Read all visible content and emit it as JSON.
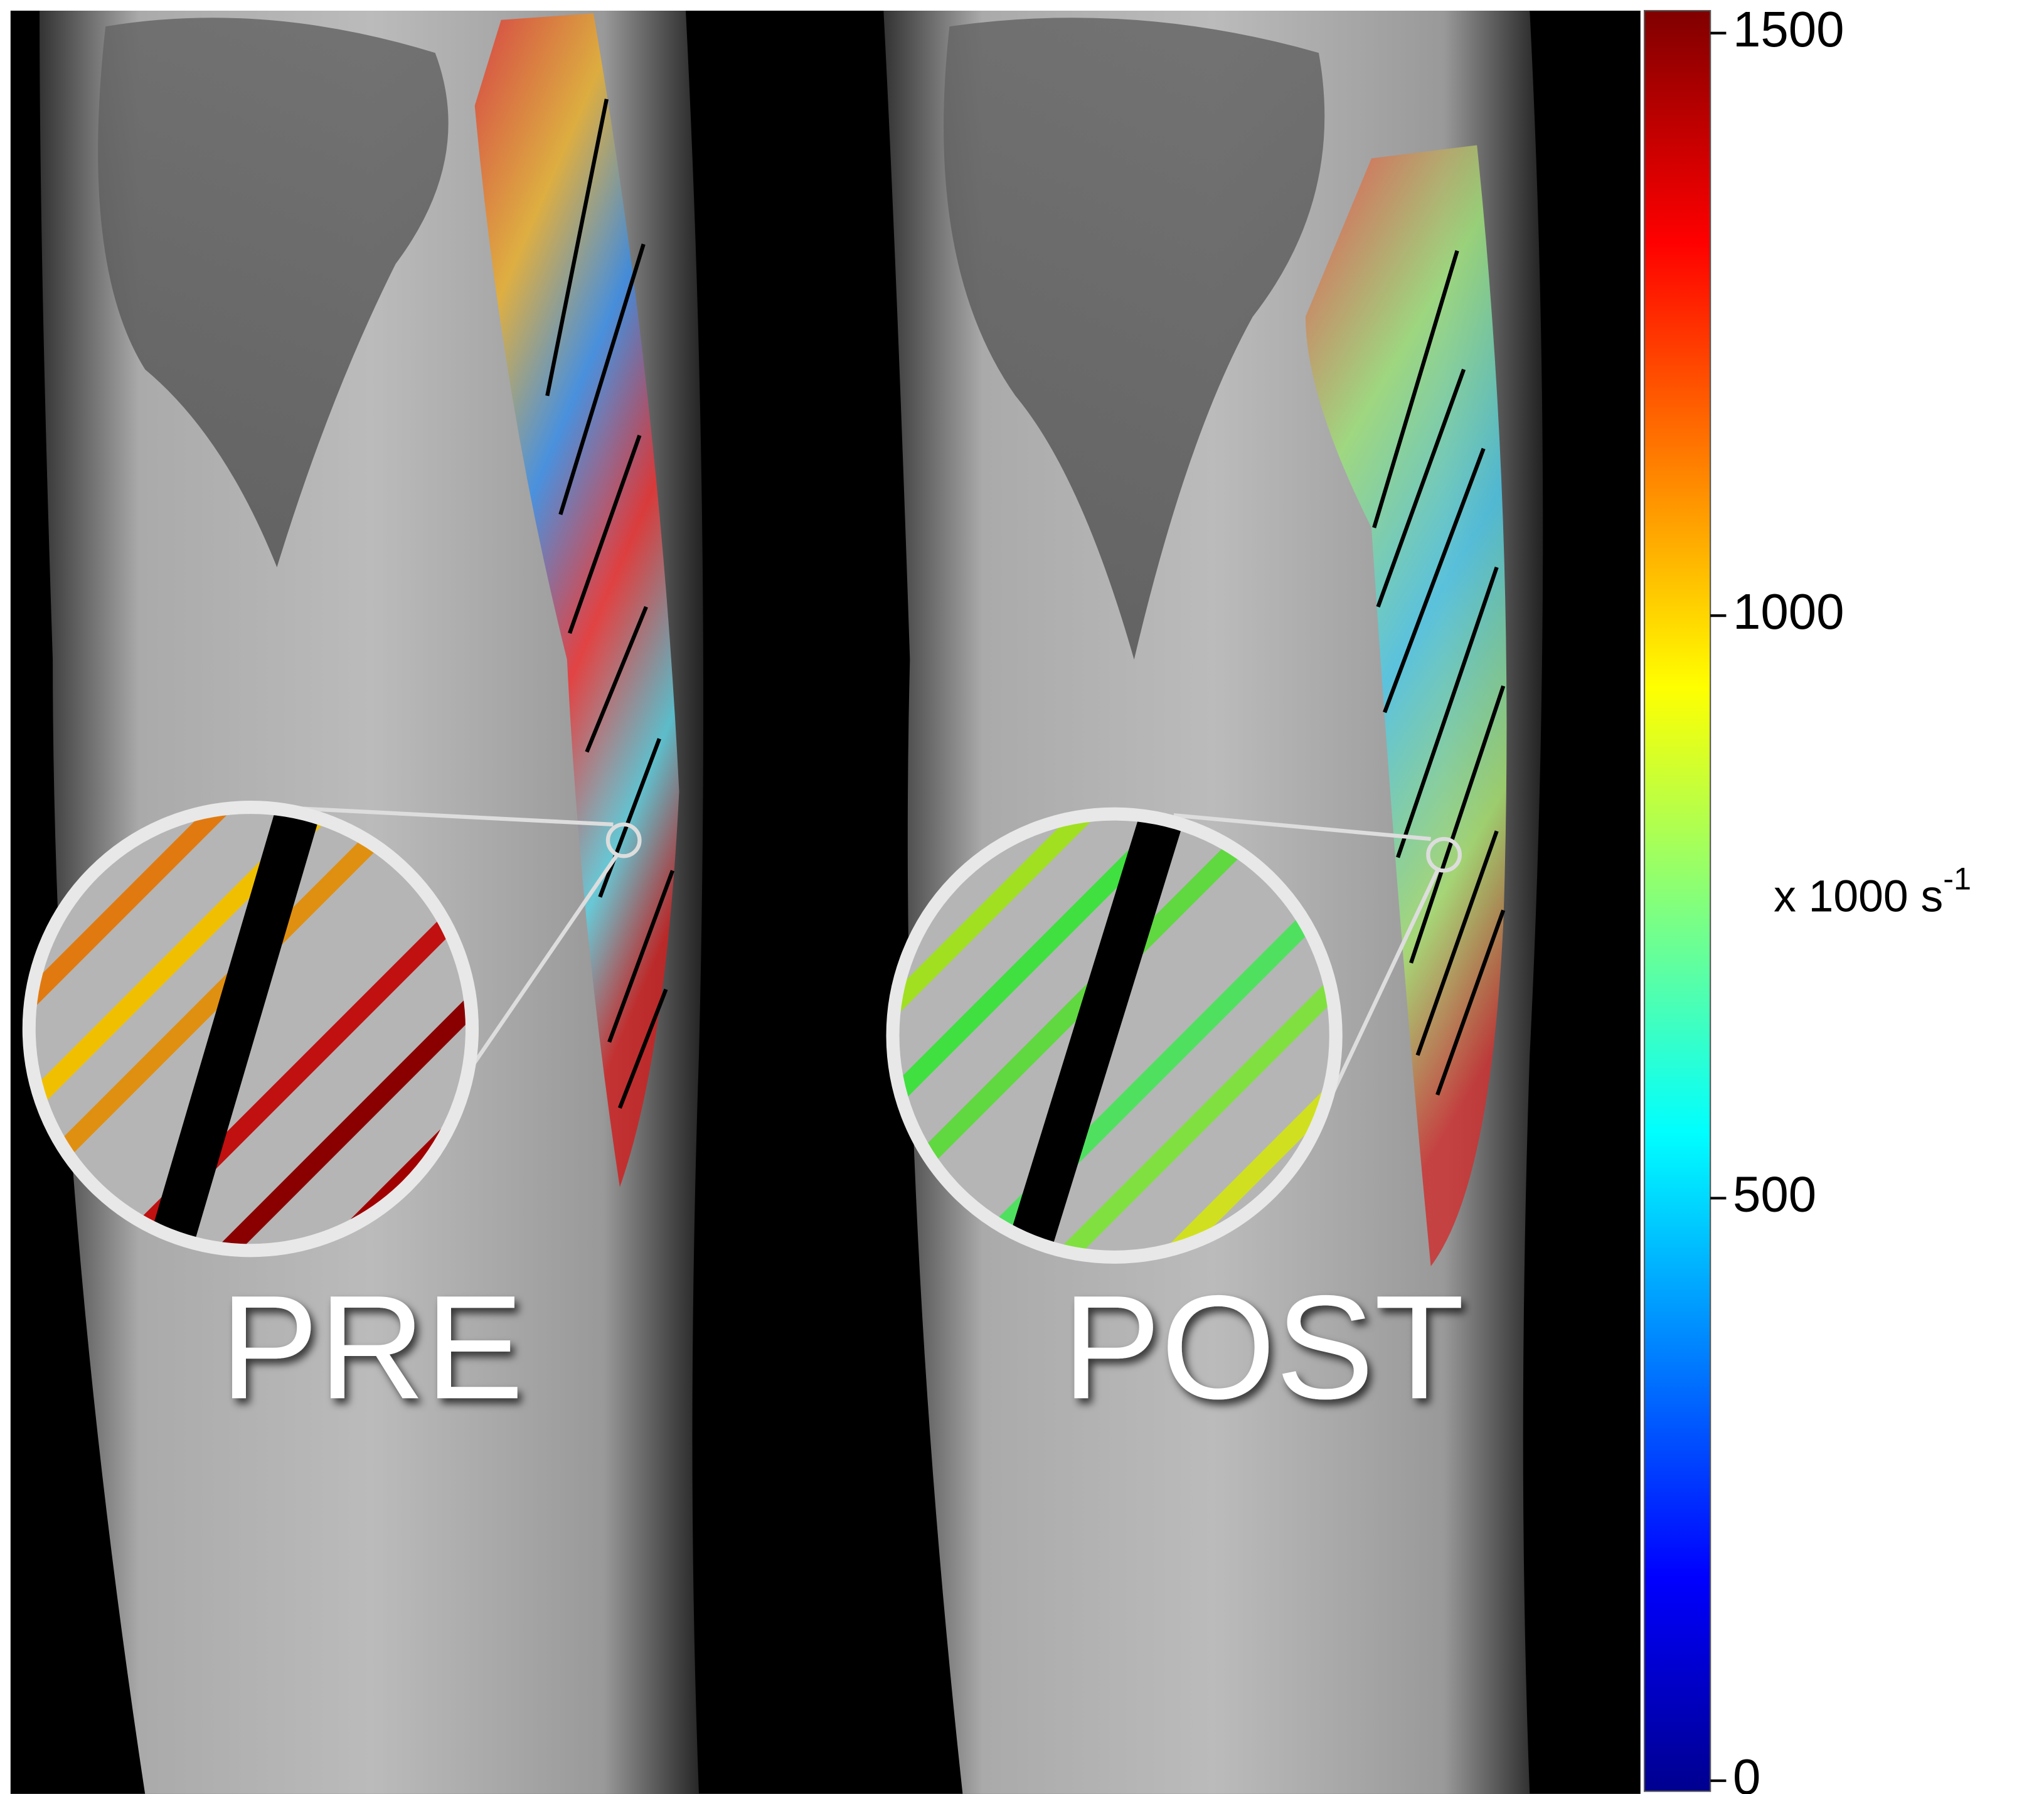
{
  "panels": {
    "left_label": "PRE",
    "right_label": "POST"
  },
  "colorbar": {
    "label": "x 1000 s",
    "label_exponent": "-1",
    "lim": [
      0,
      1500
    ],
    "ticks": [
      0,
      500,
      1000,
      1500
    ]
  }
}
